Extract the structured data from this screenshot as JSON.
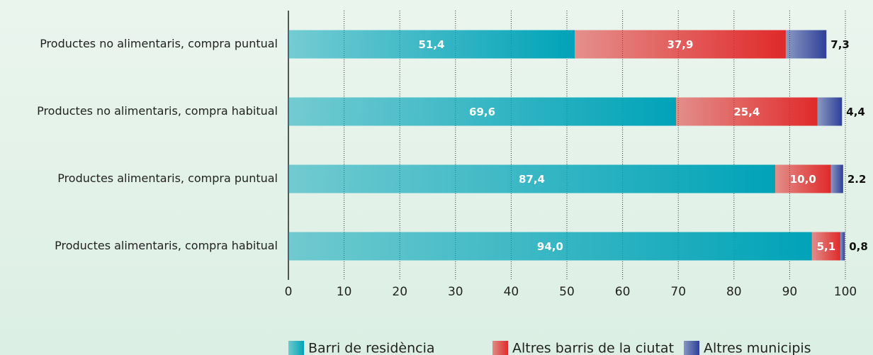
{
  "chart_data": {
    "type": "stacked-bar-horizontal",
    "categories": [
      "Productes no alimentaris, compra puntual",
      "Productes no alimentaris, compra habitual",
      "Productes alimentaris, compra puntual",
      "Productes alimentaris, compra habitual"
    ],
    "series": [
      {
        "name": "Barri de residència",
        "color": "#00a3b8",
        "values": [
          51.4,
          69.6,
          87.4,
          94.0
        ],
        "value_labels": [
          "51,4",
          "69,6",
          "87,4",
          "94,0"
        ]
      },
      {
        "name": "Altres barris de la ciutat",
        "color": "#e02a2a",
        "values": [
          37.9,
          25.4,
          10.0,
          5.1
        ],
        "value_labels": [
          "37,9",
          "25,4",
          "10,0",
          "5,1"
        ]
      },
      {
        "name": "Altres municipis",
        "color": "#2e3f98",
        "values": [
          7.3,
          4.4,
          2.2,
          0.8
        ],
        "value_labels": [
          "7,3",
          "4,4",
          "2.2",
          "0,8"
        ]
      }
    ],
    "xlim": [
      0,
      100
    ],
    "xticks": [
      0,
      10,
      20,
      30,
      40,
      50,
      60,
      70,
      80,
      90,
      100
    ],
    "grid": true
  }
}
